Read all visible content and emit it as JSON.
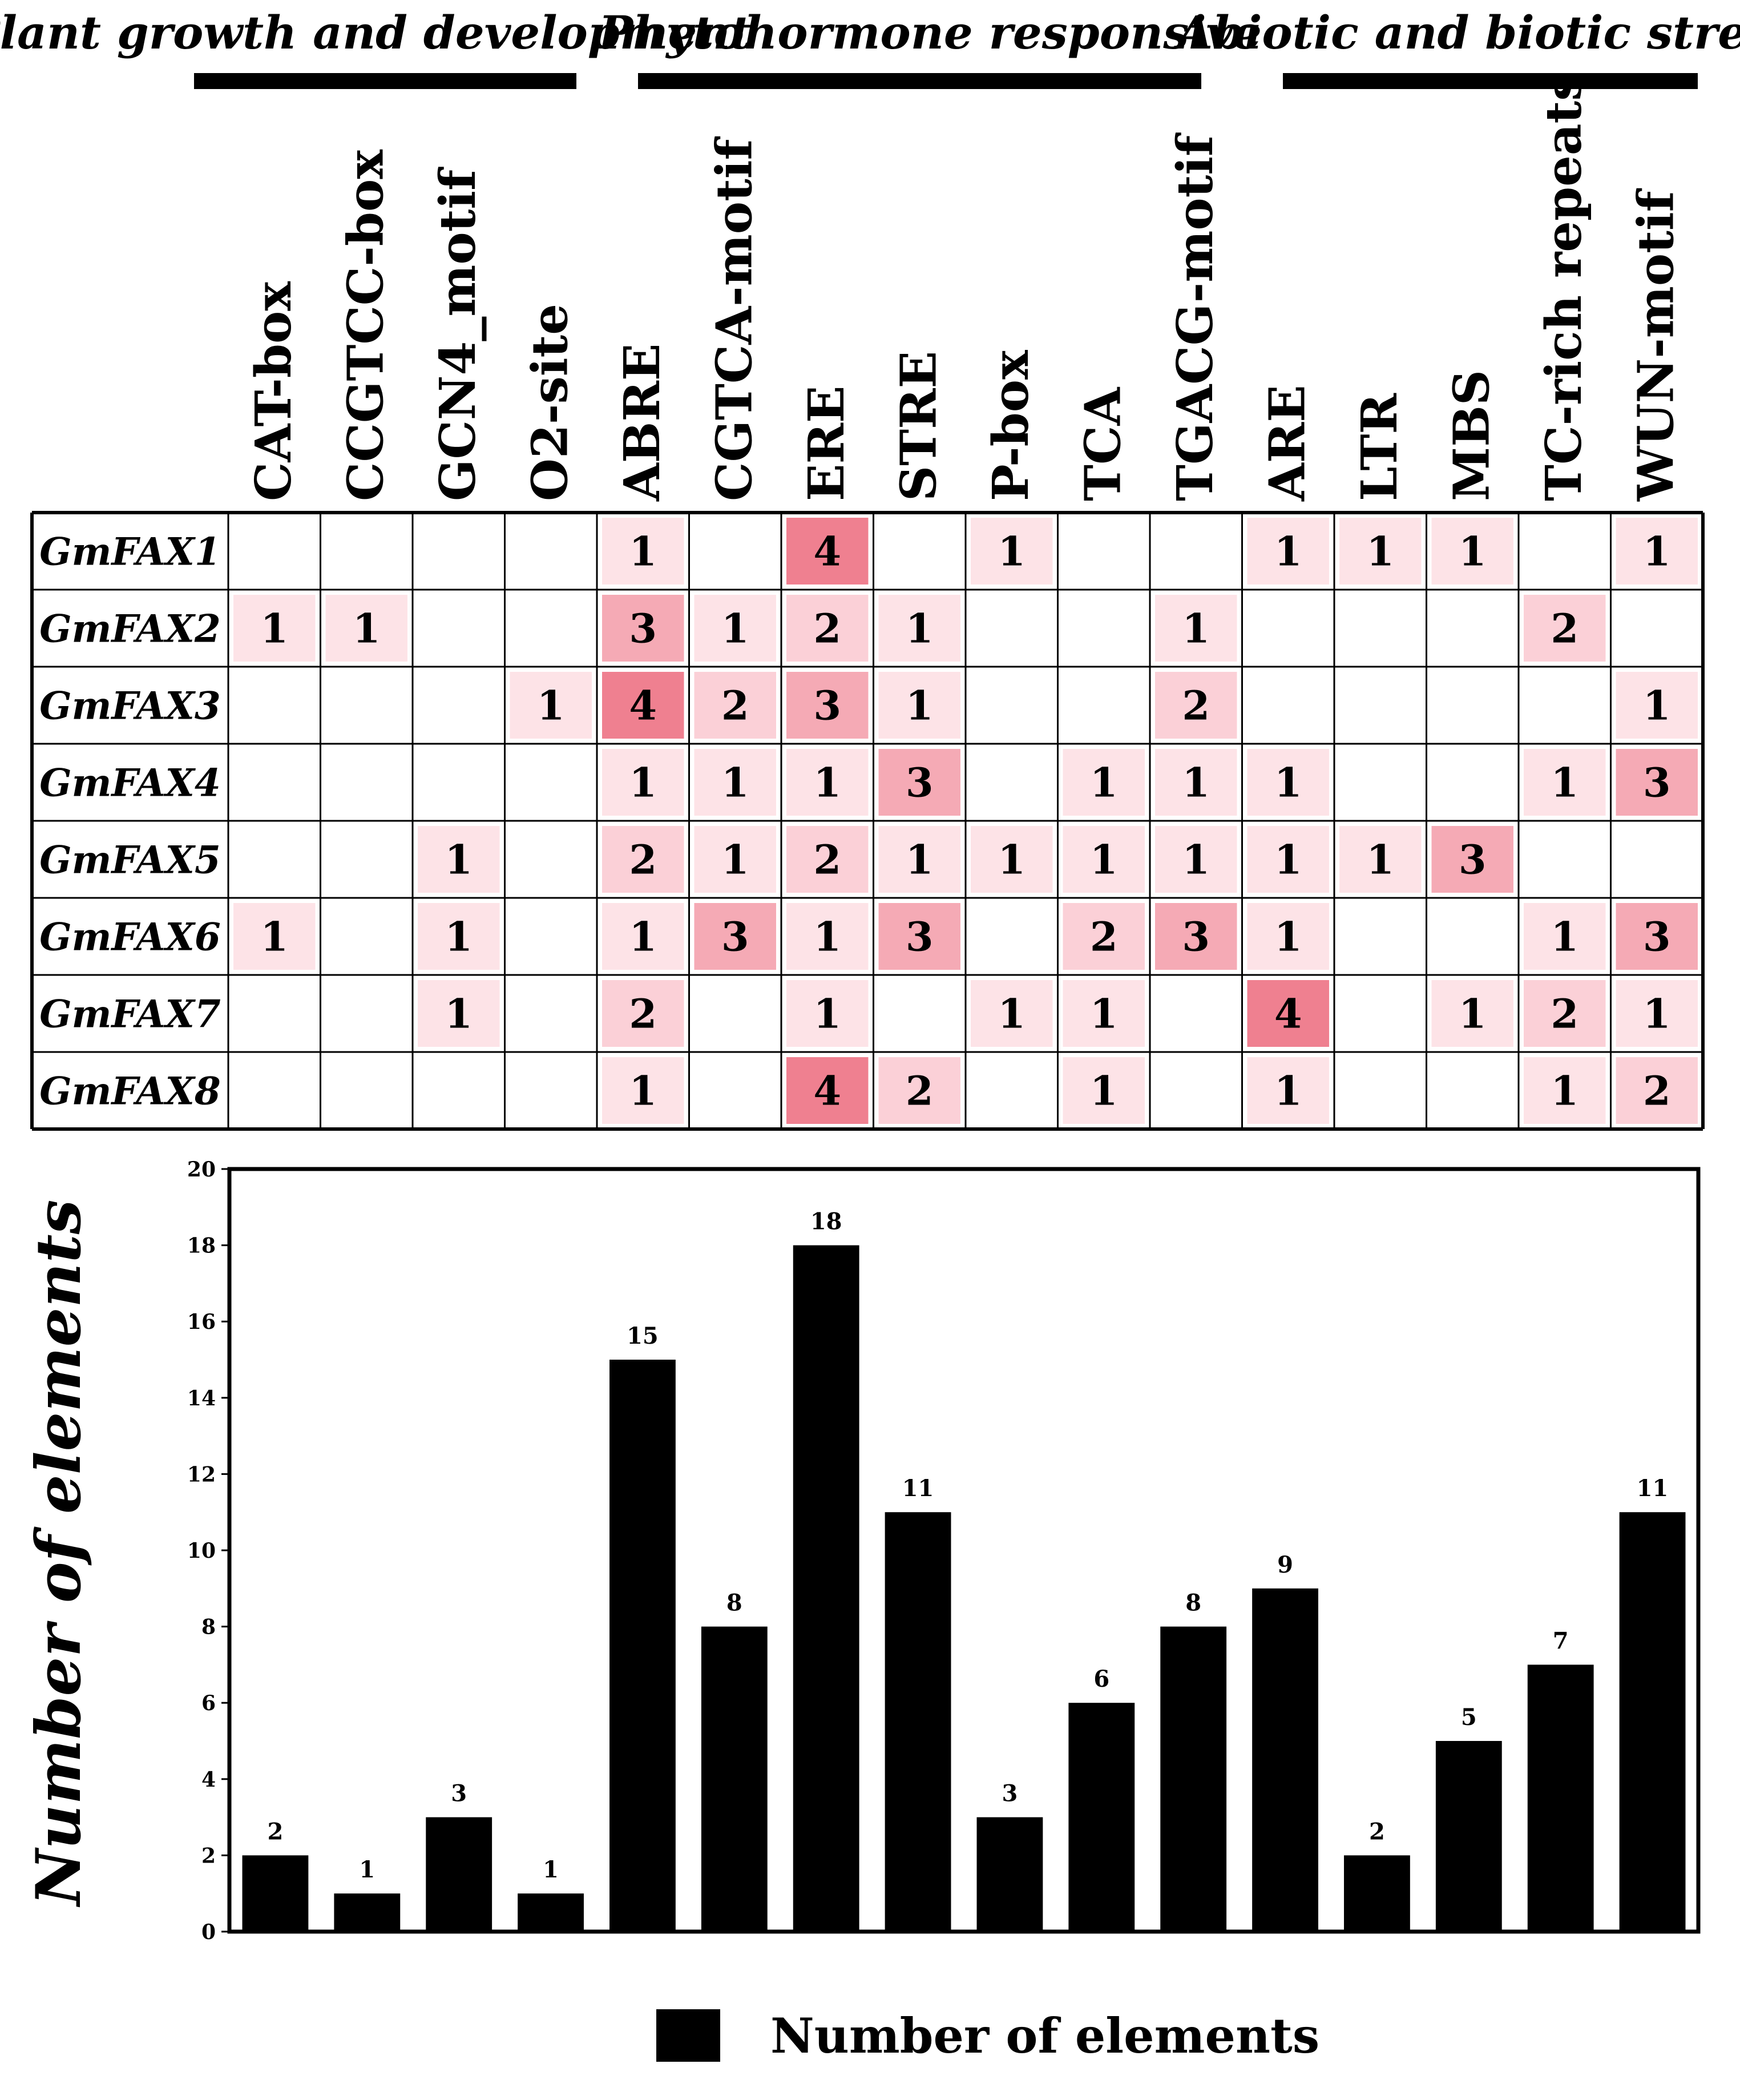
{
  "categories": [
    {
      "label": "Plant growth and development",
      "from": 0,
      "to": 3
    },
    {
      "label": "Phytohormone responsive",
      "from": 4,
      "to": 10
    },
    {
      "label": "Abiotic and biotic stresses",
      "from": 11,
      "to": 15
    }
  ],
  "motifs": [
    "CAT-box",
    "CCGTCC-box",
    "GCN4_motif",
    "O2-site",
    "ABRE",
    "CGTCA-motif",
    "ERE",
    "STRE",
    "P-box",
    "TCA",
    "TGACG-motif",
    "ARE",
    "LTR",
    "MBS",
    "TC-rich repeats",
    "WUN-motif"
  ],
  "genes": [
    "GmFAX1",
    "GmFAX2",
    "GmFAX3",
    "GmFAX4",
    "GmFAX5",
    "GmFAX6",
    "GmFAX7",
    "GmFAX8"
  ],
  "heatmap": [
    [
      0,
      0,
      0,
      0,
      1,
      0,
      4,
      0,
      1,
      0,
      0,
      1,
      1,
      1,
      0,
      1
    ],
    [
      1,
      1,
      0,
      0,
      3,
      1,
      2,
      1,
      0,
      0,
      1,
      0,
      0,
      0,
      2,
      0
    ],
    [
      0,
      0,
      0,
      1,
      4,
      2,
      3,
      1,
      0,
      0,
      2,
      0,
      0,
      0,
      0,
      1
    ],
    [
      0,
      0,
      0,
      0,
      1,
      1,
      1,
      3,
      0,
      1,
      1,
      1,
      0,
      0,
      1,
      3
    ],
    [
      0,
      0,
      1,
      0,
      2,
      1,
      2,
      1,
      1,
      1,
      1,
      1,
      1,
      3,
      0,
      0
    ],
    [
      1,
      0,
      1,
      0,
      1,
      3,
      1,
      3,
      0,
      2,
      3,
      1,
      0,
      0,
      1,
      3
    ],
    [
      0,
      0,
      1,
      0,
      2,
      0,
      1,
      0,
      1,
      1,
      0,
      4,
      0,
      1,
      2,
      1
    ],
    [
      0,
      0,
      0,
      0,
      1,
      0,
      4,
      2,
      0,
      1,
      0,
      1,
      0,
      0,
      1,
      2
    ]
  ],
  "heat_colors": {
    "0": "#ffffff",
    "1": "#fde3e7",
    "2": "#fbd0d7",
    "3": "#f5aab5",
    "4": "#ef8090"
  },
  "chart_data": {
    "type": "bar",
    "categories": [
      "CAT-box",
      "CCGTCC-box",
      "GCN4_motif",
      "O2-site",
      "ABRE",
      "CGTCA-motif",
      "ERE",
      "STRE",
      "P-box",
      "TCA",
      "TGACG-motif",
      "ARE",
      "LTR",
      "MBS",
      "TC-rich repeats",
      "WUN-motif"
    ],
    "values": [
      2,
      1,
      3,
      1,
      15,
      8,
      18,
      11,
      3,
      6,
      8,
      9,
      2,
      5,
      7,
      11
    ],
    "ylabel": "Number of elements",
    "xlabel": "",
    "ylim": [
      0,
      20
    ],
    "yticks": [
      0,
      2,
      4,
      6,
      8,
      10,
      12,
      14,
      16,
      18,
      20
    ],
    "legend": "Number of elements",
    "legend_position": "bottom-center",
    "bar_color": "#000000"
  }
}
